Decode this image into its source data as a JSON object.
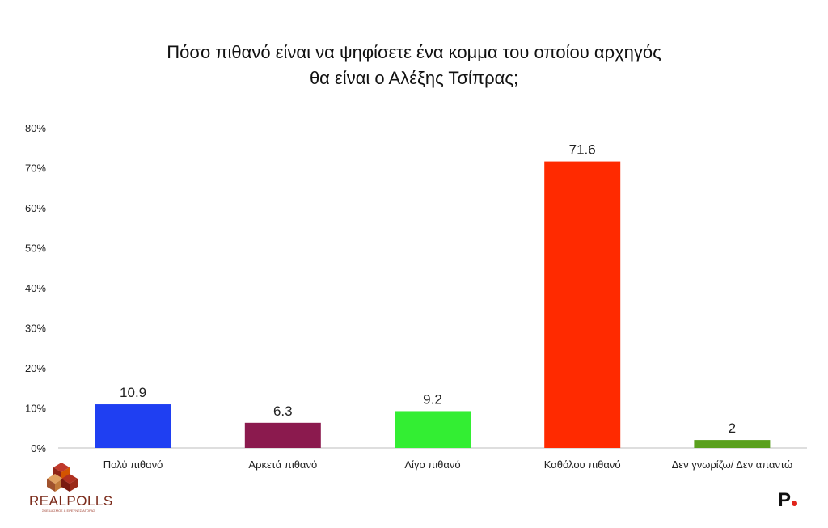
{
  "chart_data": {
    "type": "bar",
    "title_lines": [
      "Πόσο πιθανό είναι να ψηφίσετε ένα κομμα του οποίου αρχηγός",
      "θα είναι ο Αλέξης Τσίπρας;"
    ],
    "categories": [
      "Πολύ πιθανό",
      "Αρκετά πιθανό",
      "Λίγο πιθανό",
      "Καθόλου πιθανό",
      "Δεν γνωρίζω/ Δεν απαντώ"
    ],
    "values": [
      10.9,
      6.3,
      9.2,
      71.6,
      2
    ],
    "value_labels": [
      "10.9",
      "6.3",
      "9.2",
      "71.6",
      "2"
    ],
    "colors": [
      "#1f3ff2",
      "#8b1a4e",
      "#33ee33",
      "#ff2a00",
      "#5aa01e"
    ],
    "ylim": [
      0,
      80
    ],
    "yticks": [
      0,
      10,
      20,
      30,
      40,
      50,
      60,
      70,
      80
    ],
    "ytick_labels": [
      "0%",
      "10%",
      "20%",
      "30%",
      "40%",
      "50%",
      "60%",
      "70%",
      "80%"
    ],
    "grid": false
  },
  "branding": {
    "left_logo_text": "REALPOLLS",
    "left_logo_sub": "ΣΧΕΔΙΑΣΜΟΣ & ΕΡΕΥΝΕΣ ΑΓΟΡΑΣ",
    "right_logo_text": "P"
  }
}
